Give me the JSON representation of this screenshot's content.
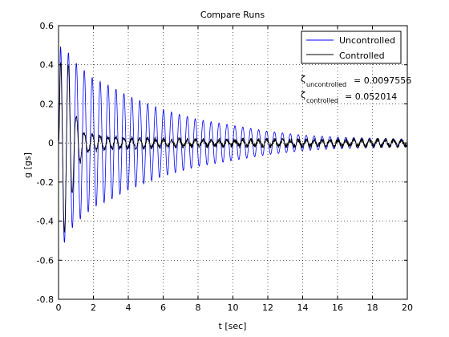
{
  "chart_data": {
    "type": "line",
    "title": "Compare Runs",
    "xlabel": "t [sec]",
    "ylabel": "g [gs]",
    "xlim": [
      0,
      20
    ],
    "ylim": [
      -0.8,
      0.6
    ],
    "grid": true,
    "grid_style": "dotted",
    "legend_position": "top-right",
    "xticks": [
      "0",
      "2",
      "4",
      "6",
      "8",
      "10",
      "12",
      "14",
      "16",
      "18",
      "20"
    ],
    "yticks": [
      "-0.8",
      "-0.6",
      "-0.4",
      "-0.2",
      "0",
      "0.2",
      "0.4",
      "0.6"
    ],
    "series": [
      {
        "name": "Uncontrolled",
        "color": "#0000ff",
        "frequency_hz": 2.2,
        "damping_ratio": 0.0097556,
        "envelope": {
          "t": [
            0.1,
            0.3,
            0.5,
            1,
            2,
            3,
            4,
            6,
            8,
            10,
            12,
            14,
            16,
            18,
            20
          ],
          "amplitude": [
            0.49,
            0.52,
            0.47,
            0.41,
            0.33,
            0.29,
            0.24,
            0.17,
            0.12,
            0.09,
            0.06,
            0.04,
            0.03,
            0.025,
            0.02
          ]
        }
      },
      {
        "name": "Controlled",
        "color": "#000000",
        "frequency_hz": 2.2,
        "damping_ratio": 0.052014,
        "envelope": {
          "t": [
            0.1,
            0.3,
            0.5,
            0.8,
            1,
            1.5,
            2,
            3,
            4,
            6,
            8,
            12,
            16,
            20
          ],
          "amplitude": [
            0.41,
            0.46,
            0.44,
            0.25,
            0.14,
            0.05,
            0.04,
            0.03,
            0.025,
            0.02,
            0.015,
            0.015,
            0.015,
            0.015
          ]
        },
        "noise_level": 0.012
      }
    ],
    "annotations": [
      {
        "symbol": "ζ",
        "subscript": "uncontrolled",
        "value": "= 0.0097556"
      },
      {
        "symbol": "ζ",
        "subscript": "controlled",
        "value": "= 0.052014"
      }
    ]
  }
}
